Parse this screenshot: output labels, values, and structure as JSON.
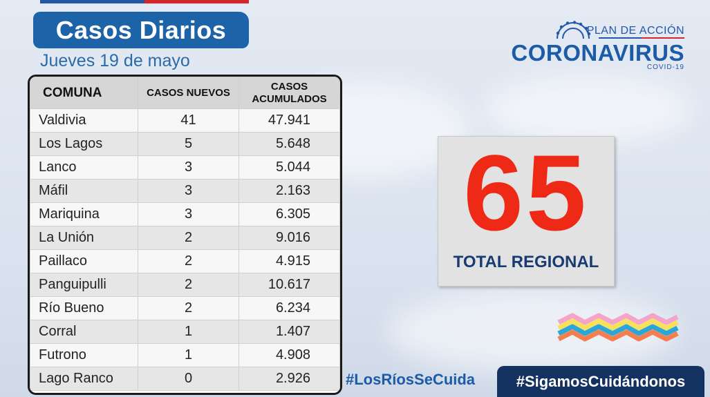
{
  "title": "Casos Diarios",
  "date": "Jueves 19 de mayo",
  "table": {
    "headers": {
      "comuna": "COMUNA",
      "nuevos": "CASOS NUEVOS",
      "acum_line1": "CASOS",
      "acum_line2": "ACUMULADOS"
    },
    "rows": [
      {
        "comuna": "Valdivia",
        "nuevos": "41",
        "acumulados": "47.941"
      },
      {
        "comuna": "Los Lagos",
        "nuevos": "5",
        "acumulados": "5.648"
      },
      {
        "comuna": "Lanco",
        "nuevos": "3",
        "acumulados": "5.044"
      },
      {
        "comuna": "Máfil",
        "nuevos": "3",
        "acumulados": "2.163"
      },
      {
        "comuna": "Mariquina",
        "nuevos": "3",
        "acumulados": "6.305"
      },
      {
        "comuna": "La Unión",
        "nuevos": "2",
        "acumulados": "9.016"
      },
      {
        "comuna": "Paillaco",
        "nuevos": "2",
        "acumulados": "4.915"
      },
      {
        "comuna": "Panguipulli",
        "nuevos": "2",
        "acumulados": "10.617"
      },
      {
        "comuna": "Río Bueno",
        "nuevos": "2",
        "acumulados": "6.234"
      },
      {
        "comuna": "Corral",
        "nuevos": "1",
        "acumulados": "1.407"
      },
      {
        "comuna": "Futrono",
        "nuevos": "1",
        "acumulados": "4.908"
      },
      {
        "comuna": "Lago Ranco",
        "nuevos": "0",
        "acumulados": "2.926"
      }
    ]
  },
  "total": {
    "value": "65",
    "label": "TOTAL REGIONAL"
  },
  "logo": {
    "plan": "PLAN DE ACCIÓN",
    "name": "CORONAVIRUS",
    "sub": "COVID-19",
    "icon": "virus-icon"
  },
  "hashtags": {
    "primary": "#LosRíosSeCuida",
    "secondary": "#SigamosCuidándonos"
  },
  "colors": {
    "brand_blue": "#1c63a8",
    "dark_navy": "#14325f",
    "total_red": "#ee2a16",
    "brand_red": "#d7262b"
  }
}
